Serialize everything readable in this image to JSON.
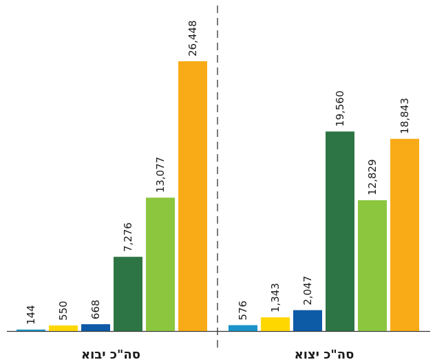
{
  "chart_data": {
    "type": "bar",
    "groups": [
      "סה\"כ יבוא",
      "סה\"כ יצוא"
    ],
    "series_colors": [
      "#1a94c8",
      "#ffd700",
      "#0d5aa7",
      "#2e7545",
      "#8cc63f",
      "#f9ab17"
    ],
    "series": [
      {
        "values": [
          144,
          576
        ],
        "labels": [
          "144",
          "576"
        ]
      },
      {
        "values": [
          550,
          1343
        ],
        "labels": [
          "550",
          "1,343"
        ]
      },
      {
        "values": [
          668,
          2047
        ],
        "labels": [
          "668",
          "2,047"
        ]
      },
      {
        "values": [
          7276,
          19560
        ],
        "labels": [
          "7,276",
          "19,560"
        ]
      },
      {
        "values": [
          13077,
          12829
        ],
        "labels": [
          "13,077",
          "12,829"
        ]
      },
      {
        "values": [
          26448,
          18843
        ],
        "labels": [
          "26,448",
          "18,843"
        ]
      }
    ],
    "ylim": [
      0,
      26448
    ],
    "grid": false,
    "legend": "none",
    "separator": "dashed vertical line between groups"
  }
}
